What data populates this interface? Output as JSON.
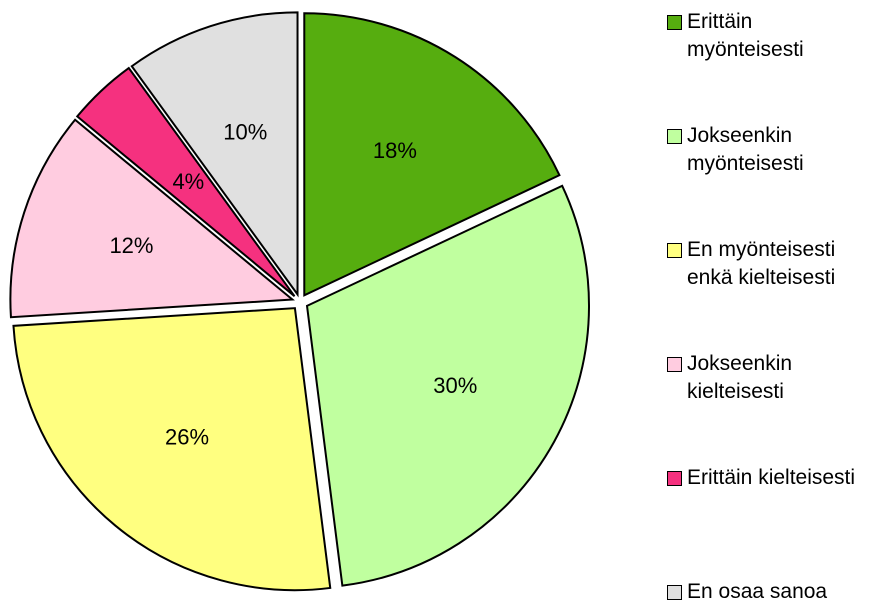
{
  "chart_data": {
    "type": "pie",
    "categories": [
      "Erittäin myönteisesti",
      "Jokseenkin myönteisesti",
      "En myönteisesti enkä kielteisesti",
      "Jokseenkin kielteisesti",
      "Erittäin kielteisesti",
      "En osaa sanoa"
    ],
    "values": [
      18,
      30,
      26,
      12,
      4,
      10
    ],
    "value_labels": [
      "18%",
      "30%",
      "26%",
      "12%",
      "4%",
      "10%"
    ],
    "colors": [
      "#56ad0f",
      "#c0ff9f",
      "#ffff80",
      "#ffcce0",
      "#f5317f",
      "#e0e0e0"
    ],
    "legend": "right"
  }
}
